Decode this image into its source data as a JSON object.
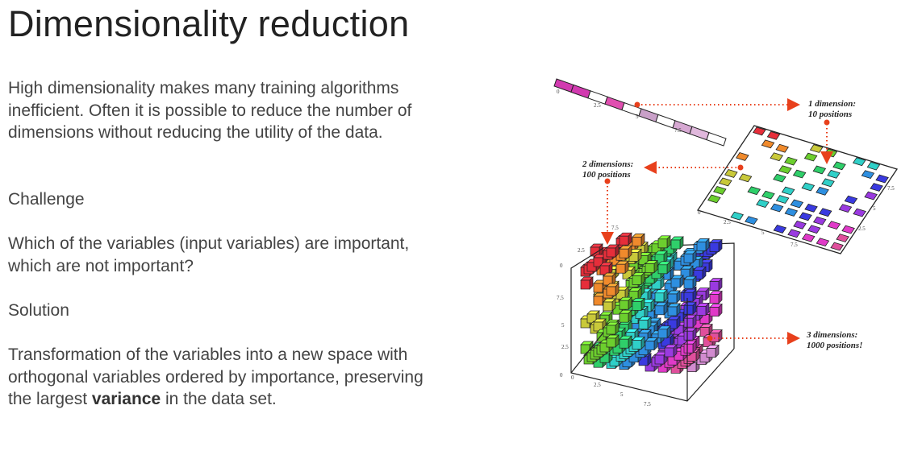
{
  "slide": {
    "title": "Dimensionality reduction",
    "intro": "High dimensionality makes many training algorithms inefficient. Often it is possible to reduce the number of dimensions without reducing the utility of the data.",
    "challenge_heading": "Challenge",
    "challenge_text": "Which of the variables (input variables) are important, which are not important?",
    "solution_heading": "Solution",
    "solution_text_before": "Transformation of the variables into a new space with orthogonal variables ordered by importance, preserving the largest ",
    "solution_text_bold": "variance",
    "solution_text_after": " in the data set."
  },
  "figure": {
    "callout_1d": {
      "line1": "1 dimension:",
      "line2": "10 positions"
    },
    "callout_2d": {
      "line1": "2 dimensions:",
      "line2": "100 positions"
    },
    "callout_3d": {
      "line1": "3 dimensions:",
      "line2": "1000 positions!"
    },
    "ticks": [
      "0",
      "2.5",
      "5",
      "7.5"
    ],
    "arrow_color": "#e8401c",
    "cell_colors": [
      "#e62e3a",
      "#f08a2c",
      "#c9c93a",
      "#6ccf2e",
      "#2fcf6a",
      "#30d0c8",
      "#2e8fe0",
      "#3a3ae0",
      "#9a3ae0",
      "#e03ac8",
      "#e04f9c",
      "#d28bd0"
    ]
  }
}
